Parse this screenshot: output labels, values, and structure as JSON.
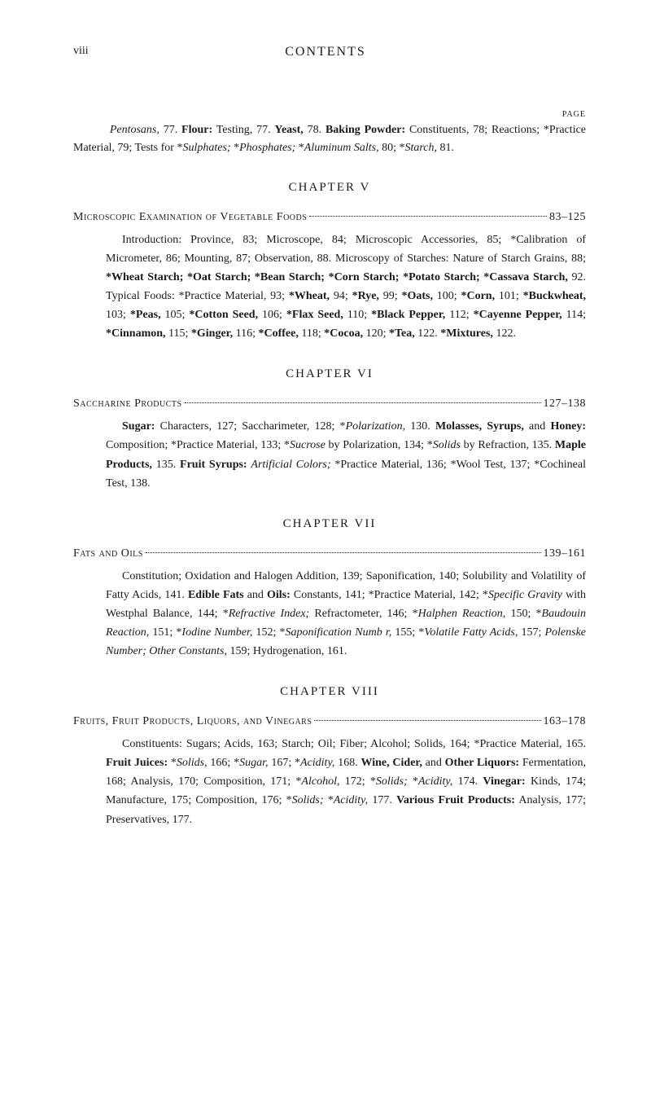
{
  "pageNumber": "viii",
  "headerTitle": "CONTENTS",
  "pageLabel": "PAGE",
  "intro": {
    "text_parts": [
      {
        "t": "italic",
        "v": "Pentosans,"
      },
      {
        "t": "plain",
        "v": " 77. "
      },
      {
        "t": "bold",
        "v": "Flour:"
      },
      {
        "t": "plain",
        "v": " Testing, 77. "
      },
      {
        "t": "bold",
        "v": "Yeast,"
      },
      {
        "t": "plain",
        "v": " 78. "
      },
      {
        "t": "bold",
        "v": "Baking Powder:"
      },
      {
        "t": "plain",
        "v": " Constituents, 78; Reactions; *Practice Material, 79; Tests for *"
      },
      {
        "t": "italic",
        "v": "Sul­phates;"
      },
      {
        "t": "plain",
        "v": " *"
      },
      {
        "t": "italic",
        "v": "Phosphates;"
      },
      {
        "t": "plain",
        "v": " *"
      },
      {
        "t": "italic",
        "v": "Aluminum Salts,"
      },
      {
        "t": "plain",
        "v": " 80; *"
      },
      {
        "t": "italic",
        "v": "Starch,"
      },
      {
        "t": "plain",
        "v": " 81."
      }
    ]
  },
  "chapters": [
    {
      "label": "CHAPTER V",
      "topicTitle": "Microscopic Examination of Vegetable Foods",
      "pages": "83–125",
      "desc_parts": [
        {
          "t": "plain",
          "v": "Introduction: Province, 83; Microscope, 84; Microscopic Accesso­ries, 85; *Calibration of Micrometer, 86; Mounting, 87; Observation, 88. Microscopy of Starches: Nature of Starch Grains, 88; "
        },
        {
          "t": "bold",
          "v": "*Wheat Starch; *Oat Starch; *Bean Starch; *Corn Starch; *Potato Starch; *Cassava Starch,"
        },
        {
          "t": "plain",
          "v": " 92. Typical Foods: *Practice Material, 93; "
        },
        {
          "t": "bold",
          "v": "*Wheat,"
        },
        {
          "t": "plain",
          "v": " 94; "
        },
        {
          "t": "bold",
          "v": "*Rye,"
        },
        {
          "t": "plain",
          "v": " 99; "
        },
        {
          "t": "bold",
          "v": "*Oats,"
        },
        {
          "t": "plain",
          "v": " 100; "
        },
        {
          "t": "bold",
          "v": "*Corn,"
        },
        {
          "t": "plain",
          "v": " 101; "
        },
        {
          "t": "bold",
          "v": "*Buckwheat,"
        },
        {
          "t": "plain",
          "v": " 103; "
        },
        {
          "t": "bold",
          "v": "*Peas,"
        },
        {
          "t": "plain",
          "v": " 105; "
        },
        {
          "t": "bold",
          "v": "*Cotton Seed,"
        },
        {
          "t": "plain",
          "v": " 106; "
        },
        {
          "t": "bold",
          "v": "*Flax Seed,"
        },
        {
          "t": "plain",
          "v": " 110; "
        },
        {
          "t": "bold",
          "v": "*Black Pepper,"
        },
        {
          "t": "plain",
          "v": " 112; "
        },
        {
          "t": "bold",
          "v": "*Cayenne Pepper,"
        },
        {
          "t": "plain",
          "v": " 114; "
        },
        {
          "t": "bold",
          "v": "*Cinnamon,"
        },
        {
          "t": "plain",
          "v": " 115; "
        },
        {
          "t": "bold",
          "v": "*Ginger,"
        },
        {
          "t": "plain",
          "v": " 116; "
        },
        {
          "t": "bold",
          "v": "*Coffee,"
        },
        {
          "t": "plain",
          "v": " 118; "
        },
        {
          "t": "bold",
          "v": "*Cocoa,"
        },
        {
          "t": "plain",
          "v": " 120; "
        },
        {
          "t": "bold",
          "v": "*Tea,"
        },
        {
          "t": "plain",
          "v": " 122. "
        },
        {
          "t": "bold",
          "v": "*Mixtures,"
        },
        {
          "t": "plain",
          "v": " 122."
        }
      ]
    },
    {
      "label": "CHAPTER VI",
      "topicTitle": "Saccharine Products",
      "pages": "127–138",
      "desc_parts": [
        {
          "t": "bold",
          "v": "Sugar:"
        },
        {
          "t": "plain",
          "v": " Characters, 127; Saccharimeter, 128; *"
        },
        {
          "t": "italic",
          "v": "Polarization,"
        },
        {
          "t": "plain",
          "v": " 130. "
        },
        {
          "t": "bold",
          "v": "Molasses, Syrups,"
        },
        {
          "t": "plain",
          "v": " and "
        },
        {
          "t": "bold",
          "v": "Honey:"
        },
        {
          "t": "plain",
          "v": " Composition; *Practice Material, 133; *"
        },
        {
          "t": "italic",
          "v": "Sucrose"
        },
        {
          "t": "plain",
          "v": " by Polarization, 134; *"
        },
        {
          "t": "italic",
          "v": "Solids"
        },
        {
          "t": "plain",
          "v": " by Refraction, 135. "
        },
        {
          "t": "bold",
          "v": "Maple Prod­ucts,"
        },
        {
          "t": "plain",
          "v": " 135. "
        },
        {
          "t": "bold",
          "v": "Fruit Syrups:"
        },
        {
          "t": "plain",
          "v": " "
        },
        {
          "t": "italic",
          "v": "Artificial Colors;"
        },
        {
          "t": "plain",
          "v": " *Practice Material, 136; *Wool Test, 137; *Cochineal Test, 138."
        }
      ]
    },
    {
      "label": "CHAPTER VII",
      "topicTitle": "Fats and Oils",
      "pages": "139–161",
      "desc_parts": [
        {
          "t": "plain",
          "v": "Constitution; Oxidation and Halogen Addition, 139; Saponification, 140; Solubility and Volatility of Fatty Acids, 141. "
        },
        {
          "t": "bold",
          "v": "Edible Fats"
        },
        {
          "t": "plain",
          "v": " and "
        },
        {
          "t": "bold",
          "v": "Oils:"
        },
        {
          "t": "plain",
          "v": " Constants, 141; *Practice Material, 142; *"
        },
        {
          "t": "italic",
          "v": "Specific Gravity"
        },
        {
          "t": "plain",
          "v": " with Westphal Balance, 144; *"
        },
        {
          "t": "italic",
          "v": "Refractive Index;"
        },
        {
          "t": "plain",
          "v": " Refractometer, 146; *"
        },
        {
          "t": "italic",
          "v": "Hal­phen Reaction,"
        },
        {
          "t": "plain",
          "v": " 150; *"
        },
        {
          "t": "italic",
          "v": "Baudouin Reaction,"
        },
        {
          "t": "plain",
          "v": " 151; *"
        },
        {
          "t": "italic",
          "v": "Iodine Number,"
        },
        {
          "t": "plain",
          "v": " 152; *"
        },
        {
          "t": "italic",
          "v": "Saponification Numb r,"
        },
        {
          "t": "plain",
          "v": " 155; *"
        },
        {
          "t": "italic",
          "v": "Volatile Fatty Acids,"
        },
        {
          "t": "plain",
          "v": " 157; "
        },
        {
          "t": "italic",
          "v": "Polenske Number; Other Constants,"
        },
        {
          "t": "plain",
          "v": " 159; Hydrogenation, 161."
        }
      ]
    },
    {
      "label": "CHAPTER VIII",
      "topicTitle": "Fruits, Fruit Products, Liquors, and Vinegars",
      "pages": "163–178",
      "desc_parts": [
        {
          "t": "plain",
          "v": "Constituents: Sugars; Acids, 163; Starch; Oil; Fiber; Alcohol; Solids, 164; *Practice Material, 165. "
        },
        {
          "t": "bold",
          "v": "Fruit Juices:"
        },
        {
          "t": "plain",
          "v": " *"
        },
        {
          "t": "italic",
          "v": "Solids,"
        },
        {
          "t": "plain",
          "v": " 166; *"
        },
        {
          "t": "italic",
          "v": "Sugar,"
        },
        {
          "t": "plain",
          "v": " 167; *"
        },
        {
          "t": "italic",
          "v": "Acidity,"
        },
        {
          "t": "plain",
          "v": " 168. "
        },
        {
          "t": "bold",
          "v": "Wine, Cider,"
        },
        {
          "t": "plain",
          "v": " and "
        },
        {
          "t": "bold",
          "v": "Other Liquors:"
        },
        {
          "t": "plain",
          "v": " Fermen­tation, 168; Analysis, 170; Composition, 171; *"
        },
        {
          "t": "italic",
          "v": "Alcohol,"
        },
        {
          "t": "plain",
          "v": " 172; *"
        },
        {
          "t": "italic",
          "v": "Solids;"
        },
        {
          "t": "plain",
          "v": " *"
        },
        {
          "t": "italic",
          "v": "Acidity,"
        },
        {
          "t": "plain",
          "v": " 174. "
        },
        {
          "t": "bold",
          "v": "Vinegar:"
        },
        {
          "t": "plain",
          "v": " Kinds, 174; Manufacture, 175; Composition, 176; *"
        },
        {
          "t": "italic",
          "v": "Solids;"
        },
        {
          "t": "plain",
          "v": " *"
        },
        {
          "t": "italic",
          "v": "Acidity,"
        },
        {
          "t": "plain",
          "v": " 177. "
        },
        {
          "t": "bold",
          "v": "Various Fruit Products:"
        },
        {
          "t": "plain",
          "v": " Analysis, 177; Preservatives, 177."
        }
      ]
    }
  ]
}
